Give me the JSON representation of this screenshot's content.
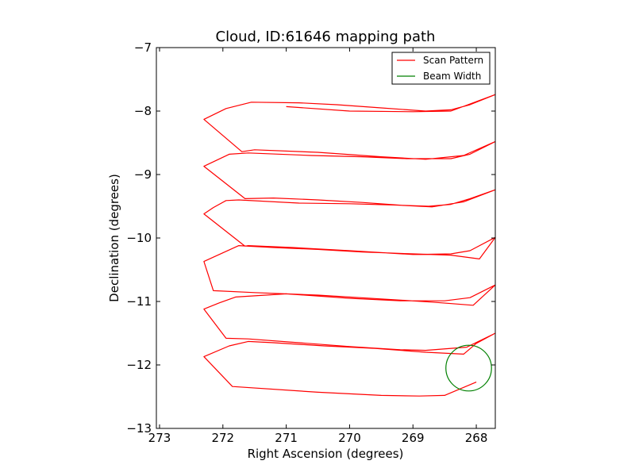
{
  "chart_data": {
    "type": "line",
    "title": "Cloud, ID:61646 mapping path",
    "xlabel": "Right Ascension (degrees)",
    "ylabel": "Declination (degrees)",
    "xlim": [
      273.05,
      267.7
    ],
    "ylim": [
      -13,
      -7
    ],
    "x_ticks": [
      273,
      272,
      271,
      270,
      269,
      268
    ],
    "y_ticks": [
      -7,
      -8,
      -9,
      -10,
      -11,
      -12,
      -13
    ],
    "x_tick_labels": [
      "273",
      "272",
      "271",
      "270",
      "269",
      "268"
    ],
    "y_tick_labels": [
      "−7",
      "−8",
      "−9",
      "−10",
      "−11",
      "−12",
      "−13"
    ],
    "grid": false,
    "legend": {
      "placement": "top-right",
      "entries": [
        "Scan Pattern",
        "Beam Width"
      ]
    },
    "series": [
      {
        "name": "Scan Pattern",
        "color": "#ff0000",
        "points": [
          [
            271.0,
            -7.93
          ],
          [
            270.0,
            -8.0
          ],
          [
            269.0,
            -8.01
          ],
          [
            268.4,
            -8.0
          ],
          [
            267.7,
            -7.74
          ],
          [
            268.1,
            -7.9
          ],
          [
            268.4,
            -7.98
          ],
          [
            268.8,
            -8.0
          ],
          [
            269.5,
            -7.95
          ],
          [
            270.2,
            -7.9
          ],
          [
            270.8,
            -7.87
          ],
          [
            271.55,
            -7.86
          ],
          [
            271.95,
            -7.96
          ],
          [
            272.3,
            -8.13
          ],
          [
            271.7,
            -8.64
          ],
          [
            271.5,
            -8.61
          ],
          [
            270.5,
            -8.65
          ],
          [
            269.5,
            -8.72
          ],
          [
            268.8,
            -8.76
          ],
          [
            268.2,
            -8.7
          ],
          [
            267.7,
            -8.48
          ],
          [
            268.1,
            -8.68
          ],
          [
            268.4,
            -8.75
          ],
          [
            269.1,
            -8.75
          ],
          [
            269.8,
            -8.72
          ],
          [
            270.6,
            -8.7
          ],
          [
            271.6,
            -8.66
          ],
          [
            271.9,
            -8.68
          ],
          [
            272.3,
            -8.87
          ],
          [
            271.65,
            -9.38
          ],
          [
            271.2,
            -9.37
          ],
          [
            270.5,
            -9.4
          ],
          [
            269.8,
            -9.44
          ],
          [
            269.1,
            -9.49
          ],
          [
            268.7,
            -9.51
          ],
          [
            268.2,
            -9.43
          ],
          [
            267.7,
            -9.24
          ],
          [
            268.1,
            -9.38
          ],
          [
            268.4,
            -9.47
          ],
          [
            268.75,
            -9.5
          ],
          [
            269.3,
            -9.48
          ],
          [
            270.0,
            -9.46
          ],
          [
            270.8,
            -9.45
          ],
          [
            271.75,
            -9.4
          ],
          [
            271.95,
            -9.41
          ],
          [
            272.15,
            -9.52
          ],
          [
            272.3,
            -9.62
          ],
          [
            271.65,
            -10.13
          ],
          [
            271.6,
            -10.12
          ],
          [
            270.9,
            -10.15
          ],
          [
            270.0,
            -10.2
          ],
          [
            269.0,
            -10.26
          ],
          [
            268.4,
            -10.25
          ],
          [
            268.1,
            -10.2
          ],
          [
            267.7,
            -9.99
          ],
          [
            267.95,
            -10.33
          ],
          [
            268.4,
            -10.27
          ],
          [
            269.0,
            -10.25
          ],
          [
            269.8,
            -10.22
          ],
          [
            270.5,
            -10.18
          ],
          [
            271.2,
            -10.15
          ],
          [
            271.75,
            -10.12
          ],
          [
            272.3,
            -10.37
          ],
          [
            272.15,
            -10.83
          ],
          [
            271.5,
            -10.86
          ],
          [
            270.5,
            -10.9
          ],
          [
            269.5,
            -10.96
          ],
          [
            268.7,
            -11.01
          ],
          [
            268.05,
            -11.06
          ],
          [
            267.7,
            -10.74
          ],
          [
            268.1,
            -10.94
          ],
          [
            268.5,
            -10.99
          ],
          [
            269.2,
            -10.99
          ],
          [
            270.0,
            -10.95
          ],
          [
            271.0,
            -10.88
          ],
          [
            271.8,
            -10.93
          ],
          [
            272.05,
            -11.02
          ],
          [
            272.3,
            -11.12
          ],
          [
            271.95,
            -11.58
          ],
          [
            271.6,
            -11.59
          ],
          [
            270.8,
            -11.65
          ],
          [
            270.0,
            -11.71
          ],
          [
            269.2,
            -11.76
          ],
          [
            268.8,
            -11.77
          ],
          [
            268.15,
            -11.72
          ],
          [
            267.7,
            -11.5
          ],
          [
            268.0,
            -11.66
          ],
          [
            268.2,
            -11.83
          ],
          [
            268.8,
            -11.8
          ],
          [
            269.6,
            -11.74
          ],
          [
            270.4,
            -11.7
          ],
          [
            271.2,
            -11.65
          ],
          [
            271.6,
            -11.63
          ],
          [
            271.9,
            -11.7
          ],
          [
            272.3,
            -11.87
          ],
          [
            271.85,
            -12.34
          ],
          [
            270.5,
            -12.43
          ],
          [
            269.5,
            -12.48
          ],
          [
            268.9,
            -12.49
          ],
          [
            268.5,
            -12.48
          ],
          [
            268.0,
            -12.27
          ]
        ]
      },
      {
        "name": "Beam Width",
        "color": "#008000",
        "shape": "circle",
        "center": [
          268.12,
          -12.05
        ],
        "radius_deg": 0.36
      }
    ]
  }
}
